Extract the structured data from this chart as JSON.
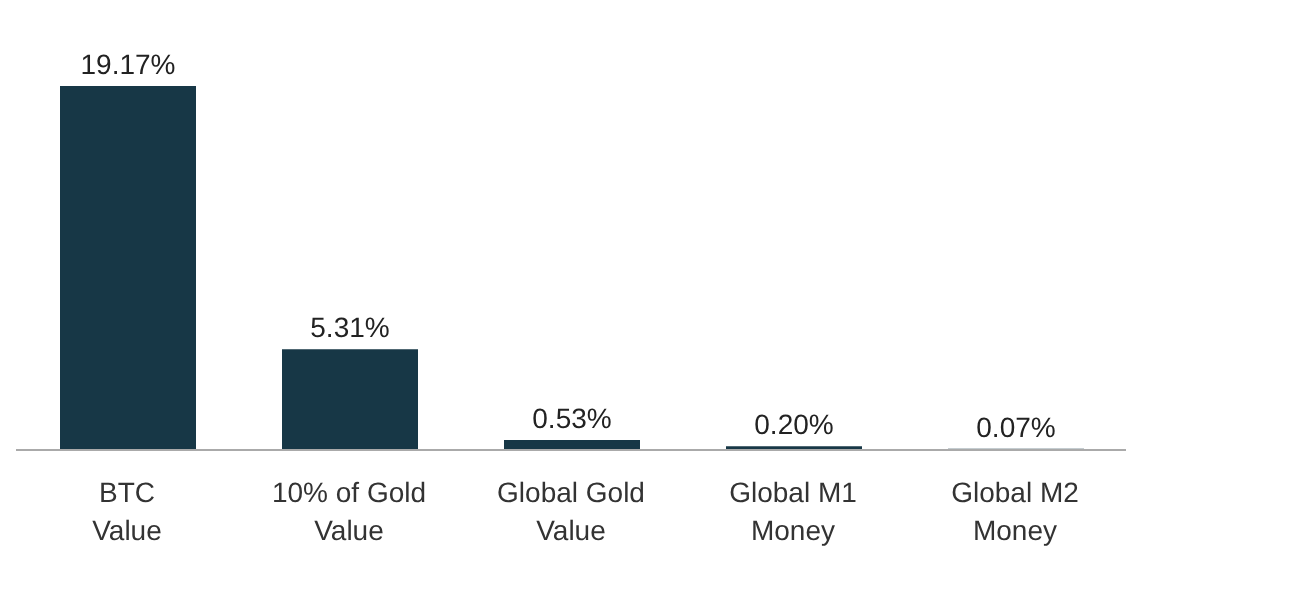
{
  "chart_data": {
    "type": "bar",
    "categories": [
      "BTC\nValue",
      "10% of Gold\nValue",
      "Global Gold\nValue",
      "Global M1\nMoney",
      "Global M2\nMoney"
    ],
    "values": [
      19.17,
      5.31,
      0.53,
      0.2,
      0.07
    ],
    "value_labels": [
      "19.17%",
      "5.31%",
      "0.53%",
      "0.20%",
      "0.07%"
    ],
    "color": "#173746",
    "grid": false,
    "legend": false
  }
}
